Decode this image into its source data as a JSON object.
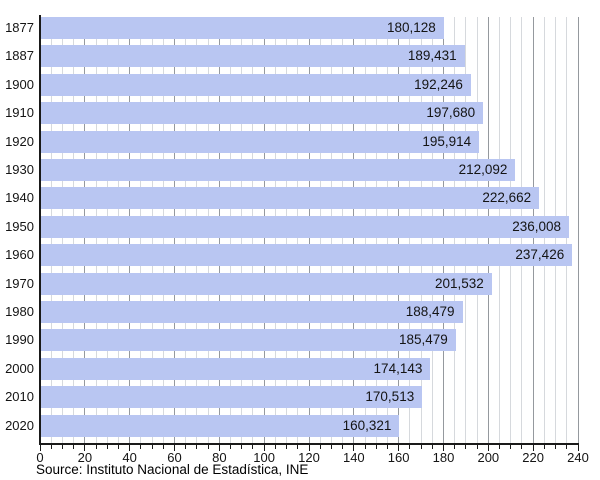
{
  "chart_data": {
    "type": "bar",
    "orientation": "horizontal",
    "title": "",
    "xlabel": "",
    "ylabel": "",
    "categories": [
      "1877",
      "1887",
      "1900",
      "1910",
      "1920",
      "1930",
      "1940",
      "1950",
      "1960",
      "1970",
      "1980",
      "1990",
      "2000",
      "2010",
      "2020"
    ],
    "values": [
      180128,
      189431,
      192246,
      197680,
      195914,
      212092,
      222662,
      236008,
      237426,
      201532,
      188479,
      185479,
      174143,
      170513,
      160321
    ],
    "value_labels": [
      "180,128",
      "189,431",
      "192,246",
      "197,680",
      "195,914",
      "212,092",
      "222,662",
      "236,008",
      "237,426",
      "201,532",
      "188,479",
      "185,479",
      "174,143",
      "170,513",
      "160,321"
    ],
    "xlim": [
      0,
      240
    ],
    "x_scale_divisor": 1000,
    "x_ticks": [
      "0",
      "20",
      "40",
      "60",
      "80",
      "100",
      "120",
      "140",
      "160",
      "180",
      "200",
      "220",
      "240"
    ],
    "x_major_step": 20,
    "x_minor_step": 5,
    "grid": "vertical-minor-and-major",
    "legend": "none"
  },
  "footer": {
    "source": "Source: Instituto Nacional de Estadística, INE"
  },
  "colors": {
    "bar_fill": "#b9c6f2",
    "grid_minor": "#d6d9dd",
    "grid_major": "#95999e",
    "axis": "#1a1a1a",
    "text": "#141414"
  }
}
